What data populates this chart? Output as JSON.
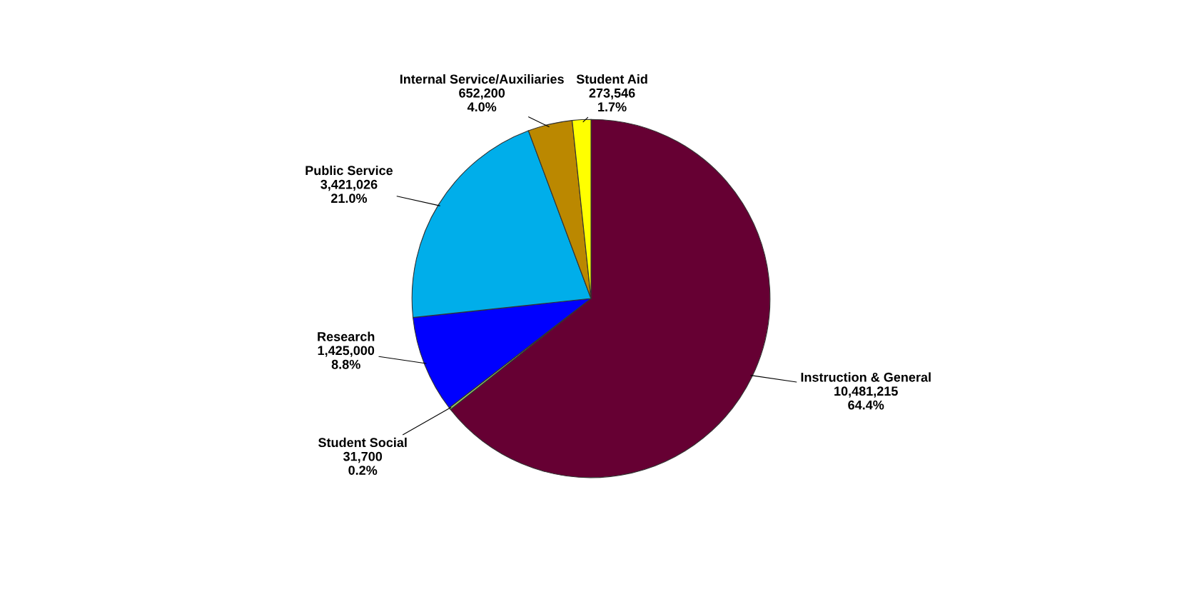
{
  "chart_data": {
    "type": "pie",
    "categories": [
      "Instruction & General",
      "Student Social",
      "Research",
      "Public Service",
      "Internal Service/Auxiliaries",
      "Student Aid"
    ],
    "values": [
      10481215,
      31700,
      1425000,
      3421026,
      652200,
      273546
    ],
    "value_labels": [
      "10,481,215\n64.4%",
      "31,700\n0.2%",
      "1,425,000\n8.8%",
      "3,421,026\n21.0%",
      "652,200\n4.0%",
      "273,546\n1.7%"
    ],
    "colors": [
      "#660033",
      "#99cc66",
      "#0000ff",
      "#00aeea",
      "#bb8800",
      "#ffff00"
    ],
    "legend": false
  }
}
